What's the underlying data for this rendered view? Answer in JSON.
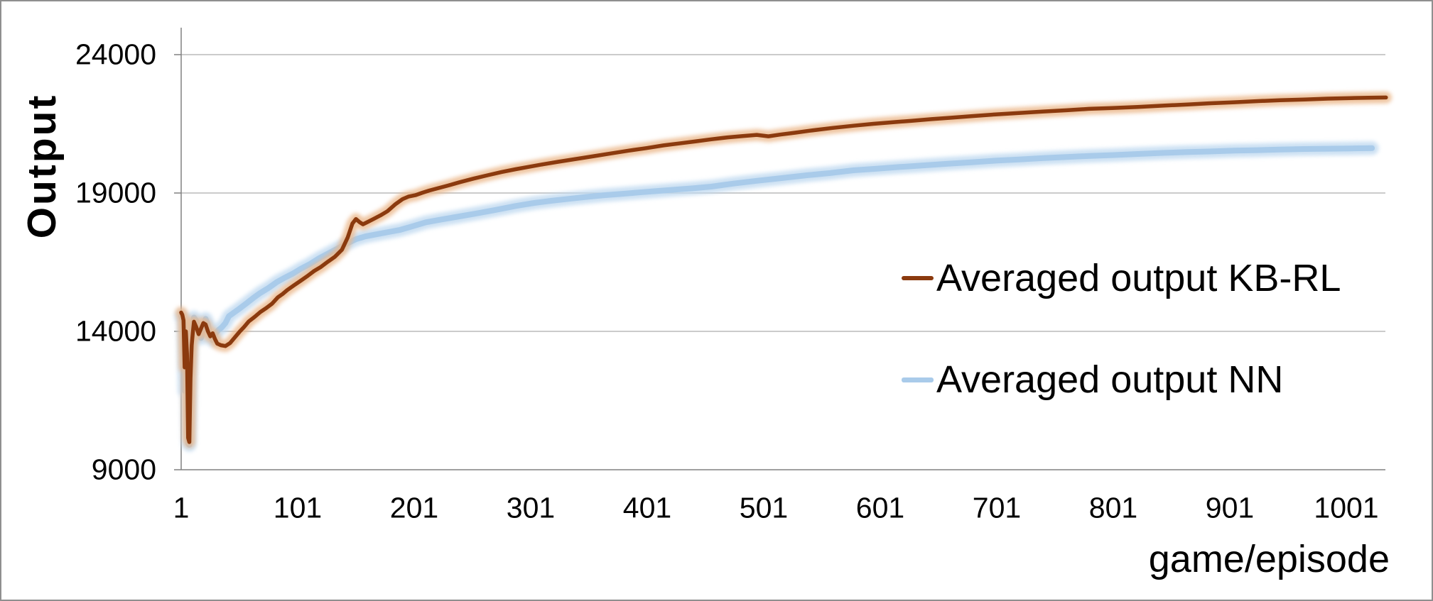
{
  "figure": {
    "y_axis_title": "Output",
    "x_axis_title": "game/episode"
  },
  "legend": [
    {
      "label": "Averaged output KB-RL",
      "color": "#8B3A0E"
    },
    {
      "label": "Averaged output NN",
      "color": "#A9CBEA"
    }
  ],
  "colors": {
    "kb_rl_line": "#8B3A0E",
    "kb_rl_glow": "#EBB78A",
    "nn_line": "#A9CBEA",
    "nn_glow": "#BFD9F0",
    "gridline": "#ACACAC",
    "axis": "#808080",
    "frame_border": "#8f8f8f",
    "text": "#000000"
  },
  "chart_data": {
    "type": "line",
    "title": "",
    "xlabel": "game/episode",
    "ylabel": "Output",
    "x_ticks": [
      1,
      101,
      201,
      301,
      401,
      501,
      601,
      701,
      801,
      901,
      1001
    ],
    "y_ticks": [
      9000,
      14000,
      19000,
      24000
    ],
    "xlim": [
      1,
      1035
    ],
    "ylim": [
      9000,
      24000
    ],
    "grid": "horizontal",
    "legend_position": "center-right",
    "series": [
      {
        "name": "Averaged output NN",
        "color": "#A9CBEA",
        "glow": "#BFD9F0",
        "stroke_width": 8,
        "points": [
          [
            1,
            14550
          ],
          [
            2,
            14450
          ],
          [
            3,
            14300
          ],
          [
            4,
            11850
          ],
          [
            5,
            13900
          ],
          [
            6,
            12500
          ],
          [
            7,
            9950
          ],
          [
            8,
            9900
          ],
          [
            9,
            12600
          ],
          [
            10,
            13900
          ],
          [
            11,
            14200
          ],
          [
            12,
            14500
          ],
          [
            14,
            14380
          ],
          [
            16,
            14000
          ],
          [
            18,
            13760
          ],
          [
            20,
            14060
          ],
          [
            22,
            14450
          ],
          [
            24,
            14250
          ],
          [
            26,
            13820
          ],
          [
            28,
            13680
          ],
          [
            30,
            13900
          ],
          [
            33,
            14050
          ],
          [
            36,
            14150
          ],
          [
            39,
            14300
          ],
          [
            42,
            14550
          ],
          [
            46,
            14670
          ],
          [
            51,
            14820
          ],
          [
            57,
            15010
          ],
          [
            63,
            15210
          ],
          [
            69,
            15390
          ],
          [
            76,
            15570
          ],
          [
            83,
            15780
          ],
          [
            90,
            15940
          ],
          [
            97,
            16090
          ],
          [
            104,
            16270
          ],
          [
            111,
            16420
          ],
          [
            119,
            16630
          ],
          [
            127,
            16810
          ],
          [
            135,
            16990
          ],
          [
            143,
            17170
          ],
          [
            151,
            17330
          ],
          [
            159,
            17430
          ],
          [
            169,
            17510
          ],
          [
            179,
            17590
          ],
          [
            189,
            17670
          ],
          [
            199,
            17790
          ],
          [
            211,
            17940
          ],
          [
            224,
            18040
          ],
          [
            238,
            18140
          ],
          [
            254,
            18260
          ],
          [
            271,
            18390
          ],
          [
            288,
            18530
          ],
          [
            304,
            18640
          ],
          [
            319,
            18720
          ],
          [
            334,
            18790
          ],
          [
            349,
            18860
          ],
          [
            364,
            18920
          ],
          [
            379,
            18970
          ],
          [
            394,
            19020
          ],
          [
            409,
            19070
          ],
          [
            424,
            19120
          ],
          [
            440,
            19170
          ],
          [
            456,
            19230
          ],
          [
            475,
            19340
          ],
          [
            495,
            19440
          ],
          [
            517,
            19540
          ],
          [
            538,
            19640
          ],
          [
            558,
            19720
          ],
          [
            578,
            19820
          ],
          [
            598,
            19880
          ],
          [
            618,
            19940
          ],
          [
            639,
            20000
          ],
          [
            659,
            20060
          ],
          [
            679,
            20110
          ],
          [
            700,
            20170
          ],
          [
            720,
            20210
          ],
          [
            740,
            20260
          ],
          [
            761,
            20300
          ],
          [
            781,
            20340
          ],
          [
            800,
            20370
          ],
          [
            822,
            20410
          ],
          [
            845,
            20450
          ],
          [
            865,
            20480
          ],
          [
            883,
            20500
          ],
          [
            905,
            20530
          ],
          [
            925,
            20550
          ],
          [
            944,
            20570
          ],
          [
            965,
            20590
          ],
          [
            985,
            20600
          ],
          [
            1005,
            20610
          ],
          [
            1023,
            20620
          ]
        ]
      },
      {
        "name": "Averaged output KB-RL",
        "color": "#8B3A0E",
        "glow": "#EBB78A",
        "stroke_width": 5.5,
        "points": [
          [
            1,
            14680
          ],
          [
            2,
            14600
          ],
          [
            3,
            14400
          ],
          [
            4,
            12700
          ],
          [
            5,
            14000
          ],
          [
            6,
            13200
          ],
          [
            7,
            10150
          ],
          [
            8,
            10000
          ],
          [
            9,
            12300
          ],
          [
            10,
            13500
          ],
          [
            11,
            13950
          ],
          [
            12,
            14350
          ],
          [
            14,
            14150
          ],
          [
            16,
            13900
          ],
          [
            18,
            14100
          ],
          [
            20,
            14300
          ],
          [
            22,
            14250
          ],
          [
            24,
            14000
          ],
          [
            26,
            13820
          ],
          [
            28,
            13930
          ],
          [
            30,
            13720
          ],
          [
            32,
            13560
          ],
          [
            35,
            13500
          ],
          [
            39,
            13470
          ],
          [
            43,
            13580
          ],
          [
            47,
            13780
          ],
          [
            51,
            13980
          ],
          [
            55,
            14160
          ],
          [
            59,
            14360
          ],
          [
            64,
            14520
          ],
          [
            69,
            14700
          ],
          [
            74,
            14840
          ],
          [
            79,
            15000
          ],
          [
            84,
            15230
          ],
          [
            88,
            15350
          ],
          [
            92,
            15490
          ],
          [
            98,
            15670
          ],
          [
            104,
            15840
          ],
          [
            110,
            16020
          ],
          [
            115,
            16180
          ],
          [
            121,
            16330
          ],
          [
            127,
            16520
          ],
          [
            133,
            16700
          ],
          [
            139,
            16950
          ],
          [
            144,
            17400
          ],
          [
            148,
            17900
          ],
          [
            151,
            18060
          ],
          [
            154,
            17950
          ],
          [
            157,
            17870
          ],
          [
            161,
            17950
          ],
          [
            166,
            18060
          ],
          [
            172,
            18190
          ],
          [
            178,
            18340
          ],
          [
            185,
            18600
          ],
          [
            191,
            18780
          ],
          [
            196,
            18870
          ],
          [
            202,
            18920
          ],
          [
            208,
            19010
          ],
          [
            214,
            19090
          ],
          [
            222,
            19180
          ],
          [
            230,
            19270
          ],
          [
            240,
            19390
          ],
          [
            252,
            19520
          ],
          [
            264,
            19640
          ],
          [
            276,
            19760
          ],
          [
            288,
            19860
          ],
          [
            300,
            19950
          ],
          [
            312,
            20040
          ],
          [
            325,
            20130
          ],
          [
            340,
            20230
          ],
          [
            355,
            20330
          ],
          [
            370,
            20430
          ],
          [
            385,
            20530
          ],
          [
            400,
            20620
          ],
          [
            415,
            20720
          ],
          [
            430,
            20800
          ],
          [
            443,
            20870
          ],
          [
            456,
            20940
          ],
          [
            470,
            21010
          ],
          [
            483,
            21060
          ],
          [
            495,
            21100
          ],
          [
            505,
            21050
          ],
          [
            515,
            21110
          ],
          [
            528,
            21180
          ],
          [
            540,
            21250
          ],
          [
            560,
            21350
          ],
          [
            578,
            21430
          ],
          [
            595,
            21500
          ],
          [
            612,
            21560
          ],
          [
            628,
            21610
          ],
          [
            645,
            21670
          ],
          [
            662,
            21720
          ],
          [
            680,
            21780
          ],
          [
            700,
            21840
          ],
          [
            720,
            21890
          ],
          [
            740,
            21940
          ],
          [
            761,
            21990
          ],
          [
            780,
            22040
          ],
          [
            800,
            22070
          ],
          [
            822,
            22110
          ],
          [
            845,
            22160
          ],
          [
            865,
            22200
          ],
          [
            883,
            22240
          ],
          [
            905,
            22280
          ],
          [
            925,
            22320
          ],
          [
            944,
            22350
          ],
          [
            965,
            22380
          ],
          [
            985,
            22410
          ],
          [
            1005,
            22430
          ],
          [
            1020,
            22440
          ],
          [
            1035,
            22450
          ]
        ]
      }
    ]
  }
}
